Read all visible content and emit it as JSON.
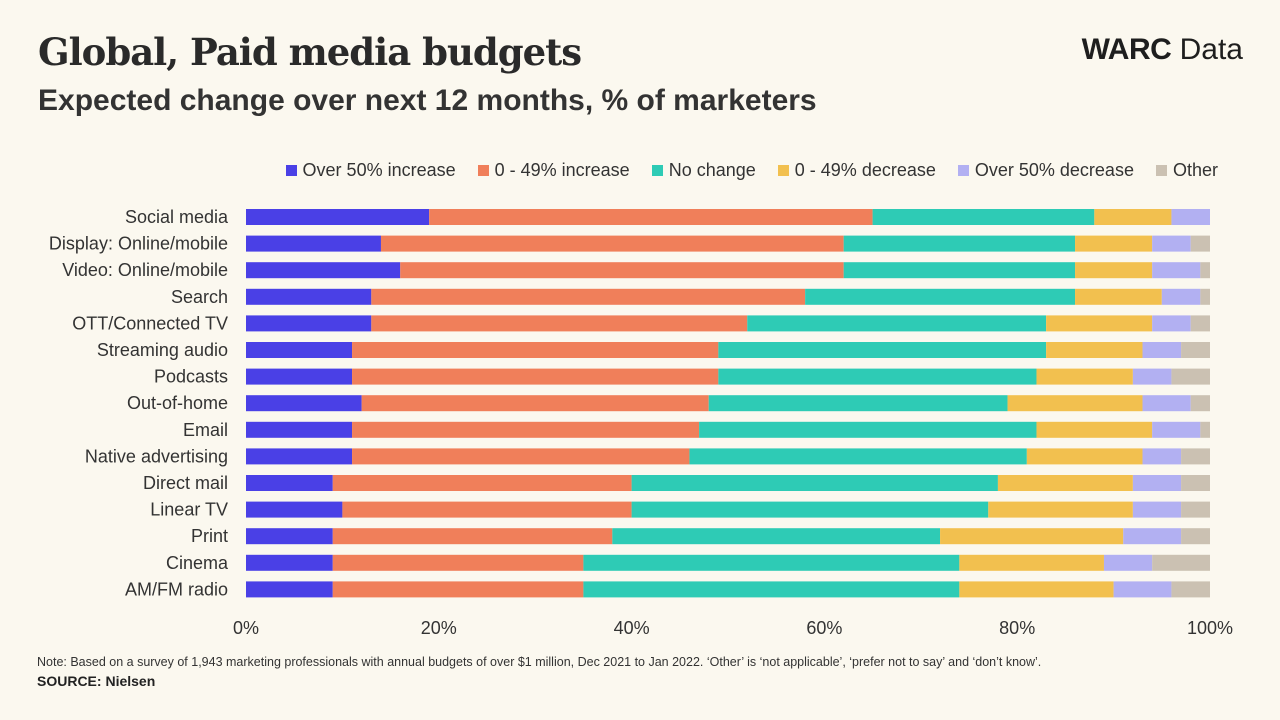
{
  "header": {
    "title": "Global, Paid media budgets",
    "subtitle": "Expected change over next 12 months, % of marketers",
    "brand_bold": "WARC",
    "brand_light": "Data"
  },
  "footer": {
    "note": "Note: Based on a survey of 1,943 marketing professionals with annual budgets of over $1 million, Dec 2021 to Jan 2022. ‘Other’ is ‘not applicable’, ‘prefer not to say’ and ‘don’t know’.",
    "source_label": "SOURCE:",
    "source_value": "Nielsen"
  },
  "chart_data": {
    "type": "bar",
    "orientation": "horizontal",
    "stacked": true,
    "title": "Global, Paid media budgets",
    "subtitle": "Expected change over next 12 months, % of marketers",
    "xlim": [
      0,
      100
    ],
    "xticks": [
      0,
      20,
      40,
      60,
      80,
      100
    ],
    "tick_suffix": "%",
    "legend_position": "top-right",
    "categories": [
      "Social media",
      "Display: Online/mobile",
      "Video: Online/mobile",
      "Search",
      "OTT/Connected TV",
      "Streaming audio",
      "Podcasts",
      "Out-of-home",
      "Email",
      "Native advertising",
      "Direct mail",
      "Linear TV",
      "Print",
      "Cinema",
      "AM/FM radio"
    ],
    "series": [
      {
        "name": "Over 50% increase",
        "color": "#4a40e6",
        "values": [
          19,
          14,
          16,
          13,
          13,
          11,
          11,
          12,
          11,
          11,
          9,
          10,
          9,
          9,
          9
        ]
      },
      {
        "name": "0 - 49% increase",
        "color": "#f07f5a",
        "values": [
          46,
          48,
          46,
          45,
          39,
          38,
          38,
          36,
          36,
          35,
          31,
          30,
          29,
          26,
          26
        ]
      },
      {
        "name": "No change",
        "color": "#2ecbb5",
        "values": [
          23,
          24,
          24,
          28,
          31,
          34,
          33,
          31,
          35,
          35,
          38,
          37,
          34,
          39,
          39
        ]
      },
      {
        "name": "0 - 49% decrease",
        "color": "#f2c04f",
        "values": [
          8,
          8,
          8,
          9,
          11,
          10,
          10,
          14,
          12,
          12,
          14,
          15,
          19,
          15,
          16
        ]
      },
      {
        "name": "Over 50% decrease",
        "color": "#b2b0f2",
        "values": [
          4,
          4,
          5,
          4,
          4,
          4,
          4,
          5,
          5,
          4,
          5,
          5,
          6,
          5,
          6
        ]
      },
      {
        "name": "Other",
        "color": "#cbc1b2",
        "values": [
          0,
          2,
          1,
          1,
          2,
          3,
          4,
          2,
          1,
          3,
          3,
          3,
          3,
          6,
          4
        ]
      }
    ]
  }
}
